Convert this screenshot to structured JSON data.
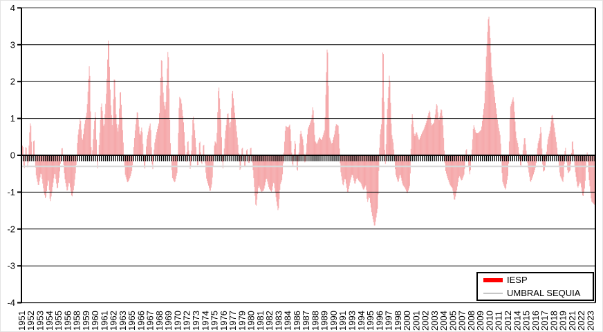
{
  "figure": {
    "background": "#FFFFFF",
    "border_color": "#E3E3E3"
  },
  "legend": {
    "iesp_label": "IESP",
    "umbral_label": "UMBRAL SEQUIA",
    "iesp_swatch_color": "#FF0000",
    "umbral_swatch_color": "#C6C6C6",
    "border_color": "#000000"
  },
  "chart_data": {
    "type": "bar",
    "title": "",
    "xlabel": "",
    "ylabel": "",
    "x_axis": {
      "start_year": 1951,
      "end_year": 2023,
      "months_total": 876,
      "label_interval_months": 14,
      "labels": [
        "1951",
        "1952",
        "1953",
        "1954",
        "1955",
        "1956",
        "1958",
        "1959",
        "1960",
        "1961",
        "1962",
        "1963",
        "1965",
        "1966",
        "1967",
        "1968",
        "1969",
        "1970",
        "1972",
        "1973",
        "1974",
        "1975",
        "1976",
        "1977",
        "1979",
        "1980",
        "1981",
        "1982",
        "1983",
        "1984",
        "1986",
        "1987",
        "1988",
        "1989",
        "1990",
        "1991",
        "1993",
        "1994",
        "1995",
        "1996",
        "1997",
        "1998",
        "2000",
        "2001",
        "2002",
        "2003",
        "2004",
        "2005",
        "2007",
        "2008",
        "2009",
        "2010",
        "2011",
        "2012",
        "2014",
        "2015",
        "2016",
        "2017",
        "2018",
        "2019",
        "2021",
        "2022",
        "2023"
      ]
    },
    "y_axis": {
      "min": -4,
      "max": 4,
      "ticks": [
        4,
        3,
        2,
        1,
        0,
        -1,
        -2,
        -3,
        -4
      ]
    },
    "gridlines": {
      "color": "#000000",
      "horizontal_at": [
        4,
        3,
        2,
        1,
        0,
        -1,
        -2,
        -3,
        -4
      ]
    },
    "legend": {
      "position": "bottom-right",
      "entries": [
        {
          "label": "IESP",
          "swatch": "bar",
          "color": "#FF0000"
        },
        {
          "label": "UMBRAL SEQUIA",
          "swatch": "line",
          "color": "#C6C6C6"
        }
      ]
    },
    "series": [
      {
        "name": "IESP",
        "type": "bar",
        "bar_color": "#F5A6A8",
        "legend_color": "#FF0000",
        "note": "monthly index 1951-2023, values estimated from plot; anchors as [decimal_year, value]",
        "anchors_year_value": [
          [
            1951.0,
            -0.25
          ],
          [
            1951.17,
            0.45
          ],
          [
            1951.33,
            -0.5
          ],
          [
            1951.58,
            0.35
          ],
          [
            1951.83,
            -0.45
          ],
          [
            1952.0,
            0.5
          ],
          [
            1952.17,
            1.0
          ],
          [
            1952.42,
            -0.3
          ],
          [
            1952.58,
            0.6
          ],
          [
            1952.83,
            -0.5
          ],
          [
            1953.17,
            -0.85
          ],
          [
            1953.5,
            -0.45
          ],
          [
            1953.83,
            -0.95
          ],
          [
            1954.08,
            -1.2
          ],
          [
            1954.42,
            -0.6
          ],
          [
            1954.67,
            -1.3
          ],
          [
            1955.0,
            -0.8
          ],
          [
            1955.25,
            -0.45
          ],
          [
            1955.58,
            -0.95
          ],
          [
            1955.83,
            -0.55
          ],
          [
            1956.17,
            0.3
          ],
          [
            1956.5,
            -0.6
          ],
          [
            1956.83,
            -1.0
          ],
          [
            1957.08,
            -0.7
          ],
          [
            1957.42,
            -1.15
          ],
          [
            1957.67,
            -0.9
          ],
          [
            1957.92,
            -0.4
          ],
          [
            1958.17,
            0.5
          ],
          [
            1958.5,
            1.05
          ],
          [
            1958.75,
            0.35
          ],
          [
            1959.0,
            0.8
          ],
          [
            1959.33,
            1.2
          ],
          [
            1959.67,
            2.6
          ],
          [
            1959.92,
            -0.3
          ],
          [
            1960.17,
            0.6
          ],
          [
            1960.42,
            1.3
          ],
          [
            1960.67,
            -0.5
          ],
          [
            1960.92,
            0.45
          ],
          [
            1961.17,
            1.5
          ],
          [
            1961.5,
            0.7
          ],
          [
            1961.83,
            1.8
          ],
          [
            1962.08,
            3.35
          ],
          [
            1962.33,
            1.5
          ],
          [
            1962.58,
            0.7
          ],
          [
            1962.83,
            2.3
          ],
          [
            1963.08,
            0.9
          ],
          [
            1963.33,
            0.6
          ],
          [
            1963.58,
            1.9
          ],
          [
            1963.92,
            0.5
          ],
          [
            1964.17,
            -0.5
          ],
          [
            1964.5,
            -0.75
          ],
          [
            1964.83,
            -0.6
          ],
          [
            1965.08,
            -0.4
          ],
          [
            1965.42,
            0.6
          ],
          [
            1965.75,
            1.25
          ],
          [
            1966.08,
            0.5
          ],
          [
            1966.33,
            0.8
          ],
          [
            1966.67,
            -0.5
          ],
          [
            1966.92,
            0.4
          ],
          [
            1967.17,
            0.7
          ],
          [
            1967.42,
            0.9
          ],
          [
            1967.67,
            -0.5
          ],
          [
            1967.92,
            0.3
          ],
          [
            1968.17,
            0.6
          ],
          [
            1968.5,
            0.9
          ],
          [
            1968.83,
            2.8
          ],
          [
            1969.08,
            1.5
          ],
          [
            1969.33,
            1.2
          ],
          [
            1969.67,
            3.05
          ],
          [
            1969.92,
            0.5
          ],
          [
            1970.17,
            -0.6
          ],
          [
            1970.5,
            -0.75
          ],
          [
            1970.83,
            -0.45
          ],
          [
            1971.08,
            1.6
          ],
          [
            1971.33,
            1.5
          ],
          [
            1971.67,
            0.8
          ],
          [
            1971.92,
            -0.3
          ],
          [
            1972.17,
            0.5
          ],
          [
            1972.5,
            -0.5
          ],
          [
            1972.83,
            1.15
          ],
          [
            1973.08,
            0.6
          ],
          [
            1973.42,
            -0.4
          ],
          [
            1973.67,
            0.5
          ],
          [
            1973.92,
            -0.35
          ],
          [
            1974.17,
            0.4
          ],
          [
            1974.5,
            -0.6
          ],
          [
            1974.83,
            -0.85
          ],
          [
            1975.0,
            -1.0
          ],
          [
            1975.25,
            -0.75
          ],
          [
            1975.58,
            0.4
          ],
          [
            1975.83,
            0.3
          ],
          [
            1976.08,
            2.0
          ],
          [
            1976.42,
            0.8
          ],
          [
            1976.58,
            -0.5
          ],
          [
            1976.92,
            0.6
          ],
          [
            1977.25,
            1.2
          ],
          [
            1977.58,
            0.7
          ],
          [
            1977.83,
            1.85
          ],
          [
            1978.17,
            1.05
          ],
          [
            1978.5,
            0.4
          ],
          [
            1978.83,
            -0.5
          ],
          [
            1979.08,
            0.3
          ],
          [
            1979.42,
            -0.4
          ],
          [
            1979.67,
            0.25
          ],
          [
            1979.92,
            -0.3
          ],
          [
            1980.17,
            0.3
          ],
          [
            1980.5,
            -0.5
          ],
          [
            1980.83,
            -1.45
          ],
          [
            1981.17,
            -0.8
          ],
          [
            1981.5,
            -1.0
          ],
          [
            1981.83,
            -0.95
          ],
          [
            1982.17,
            -0.6
          ],
          [
            1982.5,
            -0.9
          ],
          [
            1982.83,
            -1.0
          ],
          [
            1983.08,
            -0.7
          ],
          [
            1983.42,
            -1.2
          ],
          [
            1983.67,
            -1.55
          ],
          [
            1983.92,
            -0.8
          ],
          [
            1984.17,
            -0.65
          ],
          [
            1984.58,
            0.8
          ],
          [
            1984.92,
            0.75
          ],
          [
            1985.17,
            0.85
          ],
          [
            1985.5,
            -0.4
          ],
          [
            1985.83,
            0.5
          ],
          [
            1986.08,
            -0.55
          ],
          [
            1986.5,
            0.7
          ],
          [
            1986.83,
            0.4
          ],
          [
            1987.08,
            -0.3
          ],
          [
            1987.42,
            0.7
          ],
          [
            1987.92,
            1.0
          ],
          [
            1988.08,
            1.4
          ],
          [
            1988.33,
            0.4
          ],
          [
            1988.58,
            0.3
          ],
          [
            1988.92,
            0.5
          ],
          [
            1989.17,
            0.4
          ],
          [
            1989.58,
            0.7
          ],
          [
            1989.92,
            3.2
          ],
          [
            1990.17,
            0.5
          ],
          [
            1990.5,
            0.3
          ],
          [
            1990.83,
            0.6
          ],
          [
            1991.0,
            0.85
          ],
          [
            1991.33,
            0.8
          ],
          [
            1991.58,
            -0.4
          ],
          [
            1991.92,
            -0.85
          ],
          [
            1992.17,
            -0.6
          ],
          [
            1992.5,
            -1.05
          ],
          [
            1992.83,
            -0.7
          ],
          [
            1993.08,
            -0.5
          ],
          [
            1993.42,
            -0.8
          ],
          [
            1993.67,
            -0.6
          ],
          [
            1993.92,
            -0.7
          ],
          [
            1994.17,
            -0.75
          ],
          [
            1994.5,
            -0.95
          ],
          [
            1994.83,
            -0.8
          ],
          [
            1995.0,
            -1.3
          ],
          [
            1995.25,
            -1.1
          ],
          [
            1995.58,
            -1.6
          ],
          [
            1995.92,
            -1.95
          ],
          [
            1996.08,
            -1.75
          ],
          [
            1996.33,
            -1.4
          ],
          [
            1996.58,
            0.5
          ],
          [
            1996.83,
            0.9
          ],
          [
            1997.0,
            3.4
          ],
          [
            1997.25,
            -0.5
          ],
          [
            1997.5,
            1.1
          ],
          [
            1997.83,
            2.3
          ],
          [
            1998.08,
            0.6
          ],
          [
            1998.33,
            0.3
          ],
          [
            1998.58,
            -0.5
          ],
          [
            1998.92,
            -0.75
          ],
          [
            1999.17,
            -0.5
          ],
          [
            1999.5,
            -0.8
          ],
          [
            1999.83,
            -0.9
          ],
          [
            2000.08,
            -1.05
          ],
          [
            2000.42,
            -0.8
          ],
          [
            2000.67,
            1.2
          ],
          [
            2001.0,
            0.5
          ],
          [
            2001.25,
            0.65
          ],
          [
            2001.58,
            0.4
          ],
          [
            2001.92,
            0.6
          ],
          [
            2002.17,
            0.7
          ],
          [
            2002.5,
            0.9
          ],
          [
            2002.92,
            1.25
          ],
          [
            2003.17,
            0.8
          ],
          [
            2003.5,
            0.9
          ],
          [
            2003.83,
            1.45
          ],
          [
            2004.08,
            0.9
          ],
          [
            2004.42,
            1.3
          ],
          [
            2004.58,
            1.0
          ],
          [
            2004.92,
            -0.4
          ],
          [
            2005.17,
            -0.6
          ],
          [
            2005.5,
            -0.8
          ],
          [
            2005.83,
            -0.9
          ],
          [
            2006.08,
            -1.25
          ],
          [
            2006.42,
            -0.9
          ],
          [
            2006.67,
            -0.55
          ],
          [
            2007.0,
            -0.7
          ],
          [
            2007.33,
            -0.5
          ],
          [
            2007.58,
            0.25
          ],
          [
            2007.92,
            -0.4
          ],
          [
            2008.08,
            -0.55
          ],
          [
            2008.5,
            0.85
          ],
          [
            2008.83,
            0.6
          ],
          [
            2009.08,
            0.6
          ],
          [
            2009.5,
            0.7
          ],
          [
            2009.92,
            1.5
          ],
          [
            2010.08,
            2.5
          ],
          [
            2010.42,
            3.87
          ],
          [
            2010.58,
            3.4
          ],
          [
            2010.83,
            2.2
          ],
          [
            2011.0,
            2.0
          ],
          [
            2011.25,
            1.5
          ],
          [
            2011.58,
            0.9
          ],
          [
            2011.92,
            0.5
          ],
          [
            2012.17,
            -0.7
          ],
          [
            2012.58,
            -0.95
          ],
          [
            2012.92,
            -0.5
          ],
          [
            2013.17,
            1.3
          ],
          [
            2013.58,
            1.6
          ],
          [
            2013.92,
            0.5
          ],
          [
            2014.17,
            0.3
          ],
          [
            2014.5,
            -0.35
          ],
          [
            2014.83,
            0.2
          ],
          [
            2015.0,
            0.55
          ],
          [
            2015.42,
            -0.3
          ],
          [
            2015.75,
            -0.75
          ],
          [
            2016.08,
            -0.55
          ],
          [
            2016.42,
            -0.3
          ],
          [
            2016.67,
            0.3
          ],
          [
            2016.92,
            0.5
          ],
          [
            2017.08,
            0.85
          ],
          [
            2017.33,
            -0.45
          ],
          [
            2017.58,
            -0.4
          ],
          [
            2017.92,
            0.4
          ],
          [
            2018.25,
            0.7
          ],
          [
            2018.5,
            1.15
          ],
          [
            2018.83,
            0.7
          ],
          [
            2019.08,
            0.3
          ],
          [
            2019.5,
            -0.55
          ],
          [
            2019.92,
            -0.75
          ],
          [
            2020.17,
            0.3
          ],
          [
            2020.5,
            -0.5
          ],
          [
            2020.83,
            -0.4
          ],
          [
            2021.08,
            0.5
          ],
          [
            2021.42,
            -0.4
          ],
          [
            2021.75,
            -0.9
          ],
          [
            2022.08,
            -0.7
          ],
          [
            2022.42,
            -1.15
          ],
          [
            2022.67,
            -0.85
          ],
          [
            2022.92,
            0.2
          ],
          [
            2023.17,
            -0.6
          ],
          [
            2023.5,
            -1.25
          ],
          [
            2023.92,
            -1.35
          ]
        ]
      },
      {
        "name": "UMBRAL SEQUIA",
        "type": "line",
        "color": "#D9D9D9",
        "value": -0.3
      }
    ]
  }
}
